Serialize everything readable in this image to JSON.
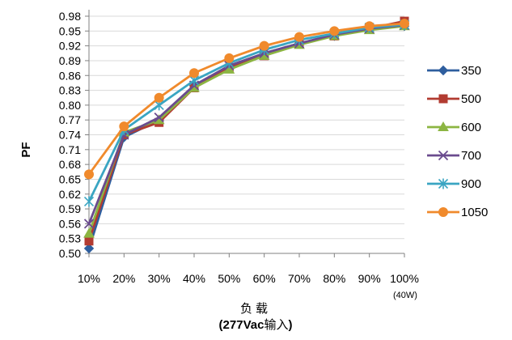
{
  "chart_data": {
    "type": "line",
    "ylabel": "PF",
    "xlabel_line1": "负载",
    "xlabel_line2_bold": "(277Vac",
    "xlabel_line2_rest": "输入",
    "xlabel_line2_close": ")",
    "x_extra_label": "(40W)",
    "categories": [
      "10%",
      "20%",
      "30%",
      "40%",
      "50%",
      "60%",
      "70%",
      "80%",
      "90%",
      "100%"
    ],
    "ylim": [
      0.5,
      0.98
    ],
    "yticks": [
      "0.50",
      "0.53",
      "0.56",
      "0.59",
      "0.62",
      "0.65",
      "0.68",
      "0.71",
      "0.74",
      "0.77",
      "0.80",
      "0.83",
      "0.86",
      "0.89",
      "0.92",
      "0.95",
      "0.98"
    ],
    "grid": "horizontal",
    "legend_position": "right",
    "series": [
      {
        "name": "350",
        "color": "#2E5E9E",
        "marker": "diamond",
        "values": [
          0.51,
          0.735,
          0.77,
          0.84,
          0.875,
          0.905,
          0.925,
          0.94,
          0.955,
          0.96
        ]
      },
      {
        "name": "500",
        "color": "#B23B31",
        "marker": "square",
        "values": [
          0.525,
          0.74,
          0.765,
          0.835,
          0.875,
          0.9,
          0.925,
          0.94,
          0.955,
          0.97
        ]
      },
      {
        "name": "600",
        "color": "#8CB542",
        "marker": "triangle",
        "values": [
          0.54,
          0.745,
          0.77,
          0.835,
          0.872,
          0.9,
          0.922,
          0.94,
          0.952,
          0.96
        ]
      },
      {
        "name": "700",
        "color": "#6A4B8E",
        "marker": "x",
        "values": [
          0.56,
          0.74,
          0.775,
          0.84,
          0.88,
          0.905,
          0.925,
          0.943,
          0.955,
          0.962
        ]
      },
      {
        "name": "900",
        "color": "#3AA5C2",
        "marker": "star",
        "values": [
          0.605,
          0.75,
          0.8,
          0.85,
          0.885,
          0.912,
          0.932,
          0.945,
          0.957,
          0.963
        ]
      },
      {
        "name": "1050",
        "color": "#F08A2C",
        "marker": "circle",
        "values": [
          0.66,
          0.757,
          0.815,
          0.865,
          0.895,
          0.92,
          0.938,
          0.95,
          0.96,
          0.965
        ]
      }
    ]
  }
}
